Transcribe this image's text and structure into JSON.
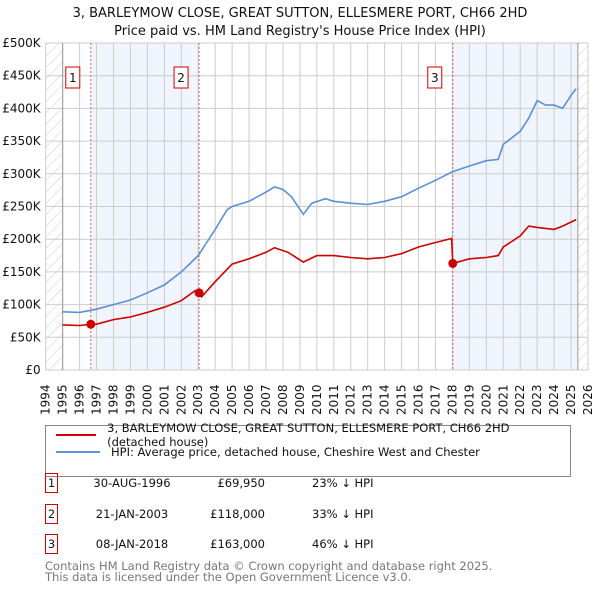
{
  "chart_data": {
    "type": "line",
    "title": "3, BARLEYMOW CLOSE, GREAT SUTTON, ELLESMERE PORT, CH66 2HD",
    "subtitle": "Price paid vs. HM Land Registry's House Price Index (HPI)",
    "xlim": [
      1994,
      2026
    ],
    "ylim": [
      0,
      500000
    ],
    "x_ticks": [
      "1994",
      "1995",
      "1996",
      "1997",
      "1998",
      "1999",
      "2000",
      "2001",
      "2002",
      "2003",
      "2004",
      "2005",
      "2006",
      "2007",
      "2008",
      "2009",
      "2010",
      "2011",
      "2012",
      "2013",
      "2014",
      "2015",
      "2016",
      "2017",
      "2018",
      "2019",
      "2020",
      "2021",
      "2022",
      "2023",
      "2024",
      "2025",
      "2026"
    ],
    "y_ticks": [
      {
        "v": 0,
        "label": "£0"
      },
      {
        "v": 50000,
        "label": "£50K"
      },
      {
        "v": 100000,
        "label": "£100K"
      },
      {
        "v": 150000,
        "label": "£150K"
      },
      {
        "v": 200000,
        "label": "£200K"
      },
      {
        "v": 250000,
        "label": "£250K"
      },
      {
        "v": 300000,
        "label": "£300K"
      },
      {
        "v": 350000,
        "label": "£350K"
      },
      {
        "v": 400000,
        "label": "£400K"
      },
      {
        "v": 450000,
        "label": "£450K"
      },
      {
        "v": 500000,
        "label": "£500K"
      }
    ],
    "data_range": [
      1995,
      2025.4
    ],
    "series": [
      {
        "name": "3, BARLEYMOW CLOSE, GREAT SUTTON, ELLESMERE PORT, CH66 2HD (detached house)",
        "color": "#cc0000",
        "x": [
          1995,
          1996,
          1996.66,
          1997,
          1998,
          1999,
          2000,
          2001,
          2002,
          2002.8,
          2003.05,
          2003.2,
          2004,
          2005,
          2006,
          2007,
          2007.5,
          2008.3,
          2009.2,
          2010,
          2011,
          2012,
          2013,
          2014,
          2015,
          2016,
          2017,
          2017.95,
          2018.02,
          2019,
          2020,
          2020.7,
          2021,
          2022,
          2022.5,
          2023,
          2024,
          2024.5,
          2025.3
        ],
        "y": [
          69000,
          68000,
          69950,
          70000,
          77000,
          81000,
          88000,
          96000,
          106000,
          121000,
          118000,
          112000,
          135000,
          162000,
          170000,
          180000,
          187000,
          180000,
          165000,
          175000,
          175000,
          172000,
          170000,
          172000,
          178000,
          188000,
          195000,
          201000,
          163000,
          170000,
          172000,
          175000,
          188000,
          205000,
          220000,
          218000,
          215000,
          220000,
          230000
        ]
      },
      {
        "name": "HPI: Average price, detached house, Cheshire West and Chester",
        "color": "#5b8fd6",
        "x": [
          1995,
          1996,
          1997,
          1998,
          1999,
          2000,
          2001,
          2002,
          2003,
          2003.5,
          2004,
          2004.7,
          2005,
          2006,
          2007,
          2007.5,
          2008,
          2008.5,
          2009.2,
          2009.7,
          2010.5,
          2011,
          2012,
          2013,
          2014,
          2015,
          2016,
          2017,
          2018,
          2019,
          2020,
          2020.7,
          2021,
          2022,
          2022.5,
          2023,
          2023.5,
          2024,
          2024.5,
          2025,
          2025.3
        ],
        "y": [
          89000,
          88000,
          93000,
          100000,
          107000,
          118000,
          130000,
          150000,
          175000,
          195000,
          215000,
          245000,
          250000,
          258000,
          272000,
          280000,
          276000,
          265000,
          238000,
          255000,
          262000,
          258000,
          255000,
          253000,
          258000,
          265000,
          278000,
          290000,
          303000,
          312000,
          320000,
          322000,
          345000,
          365000,
          385000,
          412000,
          405000,
          405000,
          400000,
          420000,
          430000
        ]
      }
    ],
    "sales": [
      {
        "label": "1",
        "x": 1996.66,
        "y": 69950,
        "date": "30-AUG-1996",
        "price": "£69,950",
        "hpi": "23% ↓ HPI"
      },
      {
        "label": "2",
        "x": 2003.05,
        "y": 118000,
        "date": "21-JAN-2003",
        "price": "£118,000",
        "hpi": "33% ↓ HPI"
      },
      {
        "label": "3",
        "x": 2018.02,
        "y": 163000,
        "date": "08-JAN-2018",
        "price": "£163,000",
        "hpi": "46% ↓ HPI"
      }
    ],
    "legend_position": "below",
    "grid": true
  },
  "legend": {
    "red": "3, BARLEYMOW CLOSE, GREAT SUTTON, ELLESMERE PORT, CH66 2HD (detached house)",
    "blue": "HPI: Average price, detached house, Cheshire West and Chester"
  },
  "footer": {
    "line1": "Contains HM Land Registry data © Crown copyright and database right 2025.",
    "line2": "This data is licensed under the Open Government Licence v3.0."
  }
}
